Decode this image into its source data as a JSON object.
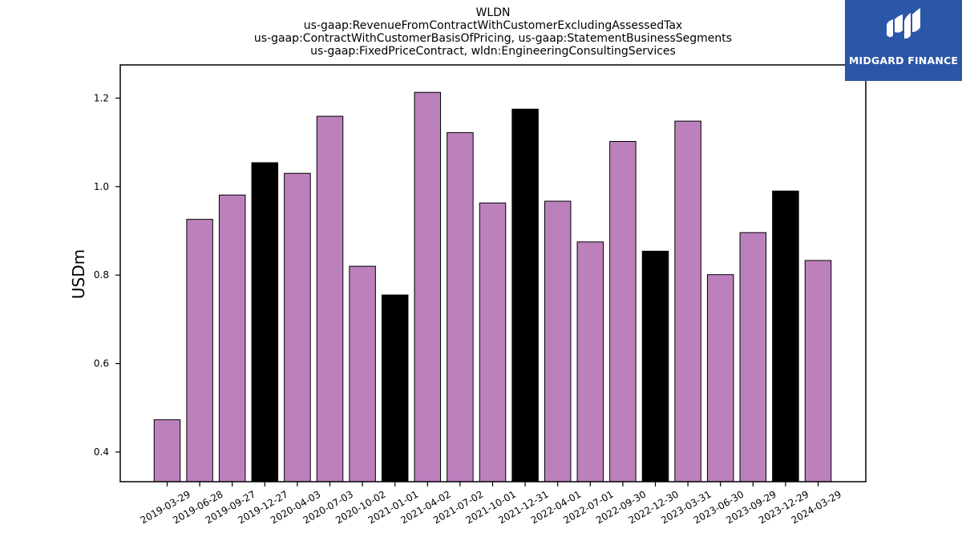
{
  "header": {
    "title_lines": [
      "WLDN",
      "us-gaap:RevenueFromContractWithCustomerExcludingAssessedTax",
      "us-gaap:ContractWithCustomerBasisOfPricing, us-gaap:StatementBusinessSegments",
      "us-gaap:FixedPriceContract, wldn:EngineeringConsultingServices"
    ]
  },
  "logo": {
    "text": "MIDGARD FINANCE",
    "background": "#2b57a8"
  },
  "chart_data": {
    "type": "bar",
    "ylabel": "USDm",
    "xlabel": "",
    "ylim": [
      0.333,
      1.275
    ],
    "yticks": [
      0.4,
      0.6,
      0.8,
      1.0,
      1.2
    ],
    "ytick_labels": [
      "0.4",
      "0.6",
      "0.8",
      "1.0",
      "1.2"
    ],
    "grid": false,
    "categories": [
      "2019-03-29",
      "2019-06-28",
      "2019-09-27",
      "2019-12-27",
      "2020-04-03",
      "2020-07-03",
      "2020-10-02",
      "2021-01-01",
      "2021-04-02",
      "2021-07-02",
      "2021-10-01",
      "2021-12-31",
      "2022-04-01",
      "2022-07-01",
      "2022-09-30",
      "2022-12-30",
      "2023-03-31",
      "2023-06-30",
      "2023-09-29",
      "2023-12-29",
      "2024-03-29"
    ],
    "values": [
      0.473,
      0.926,
      0.981,
      1.054,
      1.03,
      1.159,
      0.82,
      0.755,
      1.213,
      1.122,
      0.963,
      1.175,
      0.967,
      0.875,
      1.102,
      0.854,
      1.148,
      0.801,
      0.896,
      0.99,
      0.833
    ],
    "highlighted": [
      false,
      false,
      false,
      true,
      false,
      false,
      false,
      true,
      false,
      false,
      false,
      true,
      false,
      false,
      false,
      true,
      false,
      false,
      false,
      true,
      false
    ],
    "colors": {
      "bar": "#bc80bd",
      "highlight": "#000000",
      "edge": "#000000"
    }
  }
}
